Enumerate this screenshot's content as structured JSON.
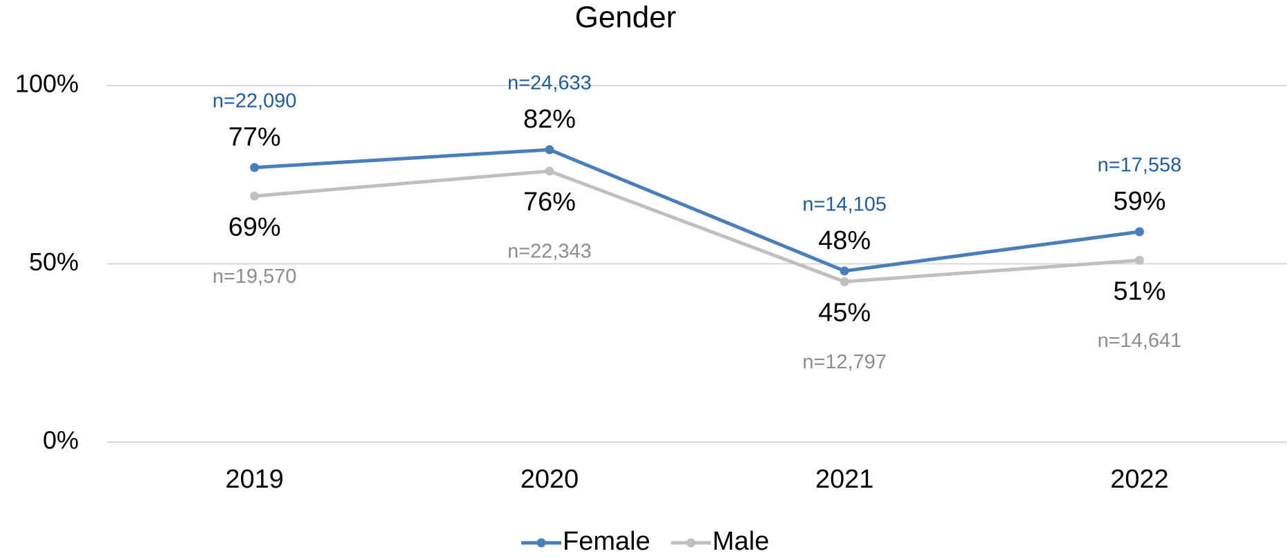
{
  "chart_data": {
    "type": "line",
    "title": "Gender",
    "categories": [
      "2019",
      "2020",
      "2021",
      "2022"
    ],
    "series": [
      {
        "name": "Female",
        "color": "#4a7ebb",
        "note_color": "#1f5c99",
        "values": [
          77,
          82,
          48,
          59
        ],
        "value_labels": [
          "77%",
          "82%",
          "48%",
          "59%"
        ],
        "notes": [
          "n=22,090",
          "n=24,633",
          "n=14,105",
          "n=17,558"
        ]
      },
      {
        "name": "Male",
        "color": "#bfbfbf",
        "note_color": "#8c8c8c",
        "values": [
          69,
          76,
          45,
          51
        ],
        "value_labels": [
          "69%",
          "76%",
          "45%",
          "51%"
        ],
        "notes": [
          "n=19,570",
          "n=22,343",
          "n=12,797",
          "n=14,641"
        ]
      }
    ],
    "ylim": [
      0,
      100
    ],
    "yticks": [
      {
        "value": 0,
        "label": "0%"
      },
      {
        "value": 50,
        "label": "50%"
      },
      {
        "value": 100,
        "label": "100%"
      }
    ],
    "grid": true,
    "legend": "bottom"
  }
}
